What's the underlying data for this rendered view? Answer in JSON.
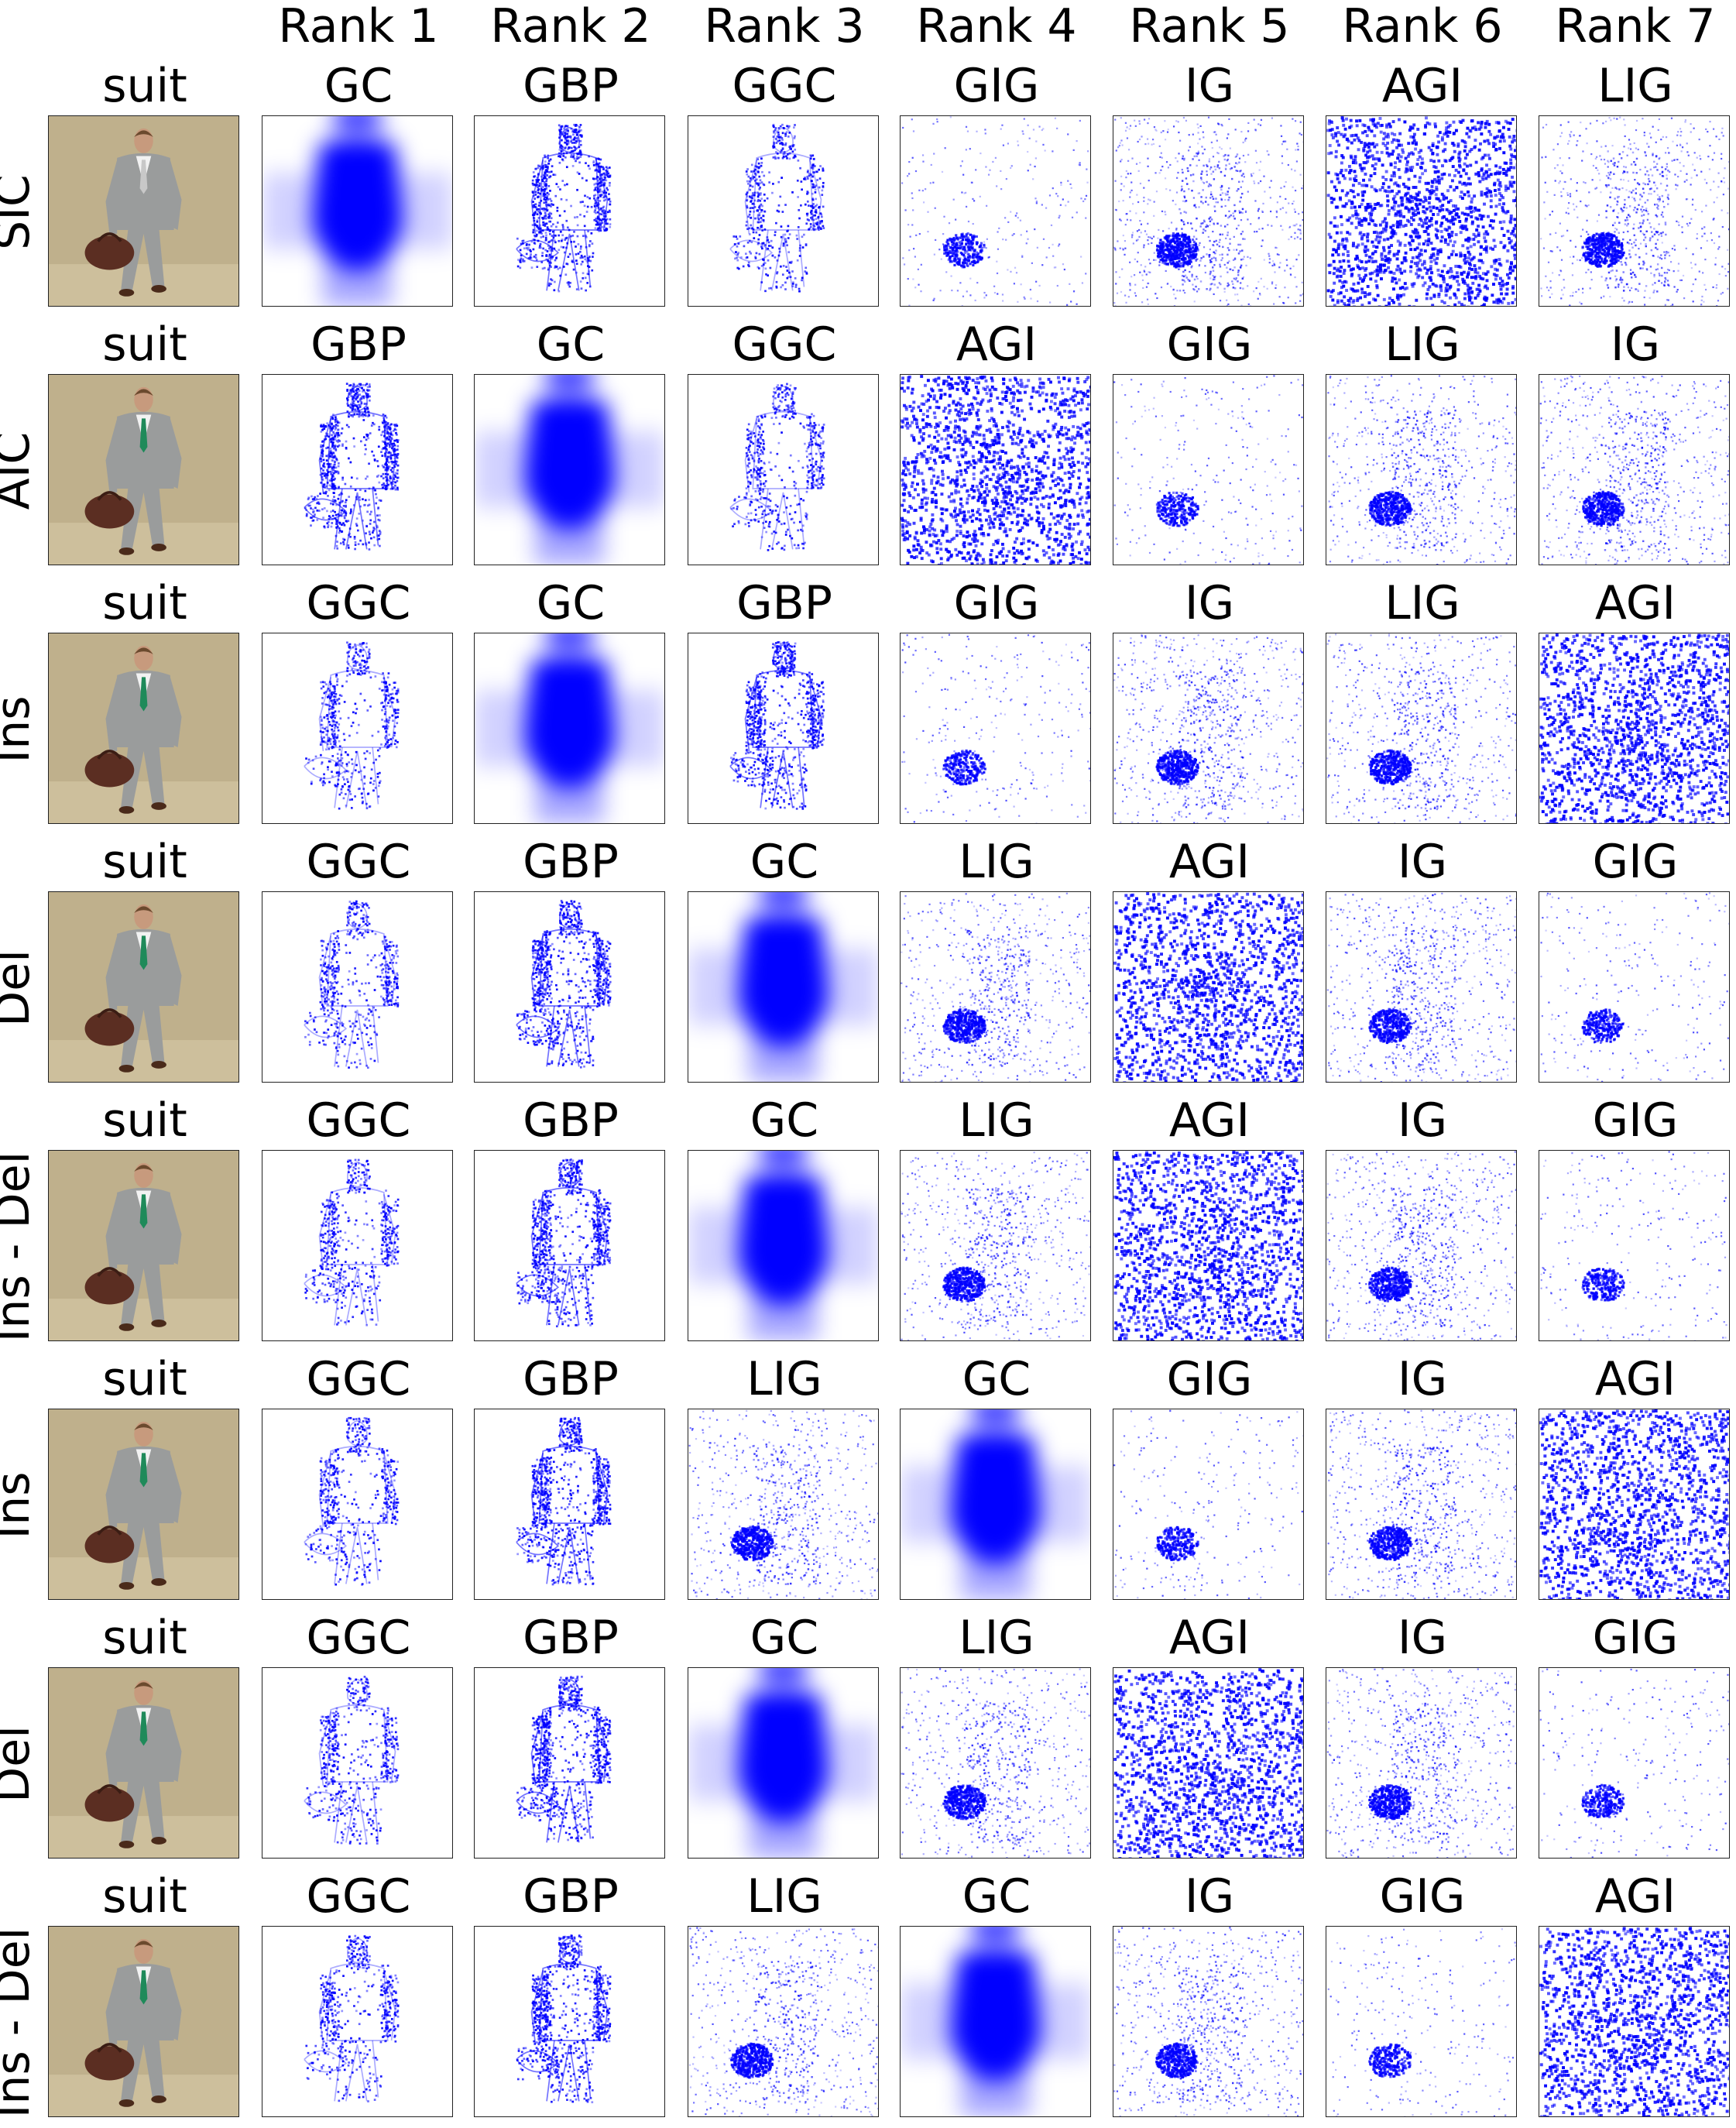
{
  "rank_headers": [
    "Rank 1",
    "Rank 2",
    "Rank 3",
    "Rank 4",
    "Rank 5",
    "Rank 6",
    "Rank 7"
  ],
  "rows": [
    {
      "metric": "SIC",
      "image_label": "suit",
      "tie_color": "#c8c8c8",
      "methods": [
        "GC",
        "GBP",
        "GGC",
        "GIG",
        "IG",
        "AGI",
        "LIG"
      ]
    },
    {
      "metric": "AIC",
      "image_label": "suit",
      "tie_color": "#1f8a5a",
      "methods": [
        "GBP",
        "GC",
        "GGC",
        "AGI",
        "GIG",
        "LIG",
        "IG"
      ]
    },
    {
      "metric": "Ins",
      "image_label": "suit",
      "tie_color": "#1f8a5a",
      "methods": [
        "GGC",
        "GC",
        "GBP",
        "GIG",
        "IG",
        "LIG",
        "AGI"
      ]
    },
    {
      "metric": "Del",
      "image_label": "suit",
      "tie_color": "#1f8a5a",
      "methods": [
        "GGC",
        "GBP",
        "GC",
        "LIG",
        "AGI",
        "IG",
        "GIG"
      ]
    },
    {
      "metric": "Ins - Del",
      "image_label": "suit",
      "tie_color": "#1f8a5a",
      "methods": [
        "GGC",
        "GBP",
        "GC",
        "LIG",
        "AGI",
        "IG",
        "GIG"
      ]
    },
    {
      "metric": "Ins",
      "image_label": "suit",
      "tie_color": "#1f8a5a",
      "methods": [
        "GGC",
        "GBP",
        "LIG",
        "GC",
        "GIG",
        "IG",
        "AGI"
      ]
    },
    {
      "metric": "Del",
      "image_label": "suit",
      "tie_color": "#1f8a5a",
      "methods": [
        "GGC",
        "GBP",
        "GC",
        "LIG",
        "AGI",
        "IG",
        "GIG"
      ]
    },
    {
      "metric": "Ins - Del",
      "image_label": "suit",
      "tie_color": "#1f8a5a",
      "methods": [
        "GGC",
        "GBP",
        "LIG",
        "GC",
        "IG",
        "GIG",
        "AGI"
      ]
    }
  ],
  "colors": {
    "saliency": "#0000ff",
    "background_photo": "#bfb08c",
    "suit": "#9a9c9c",
    "bag": "#5b2e22",
    "skin": "#c79a7d"
  }
}
